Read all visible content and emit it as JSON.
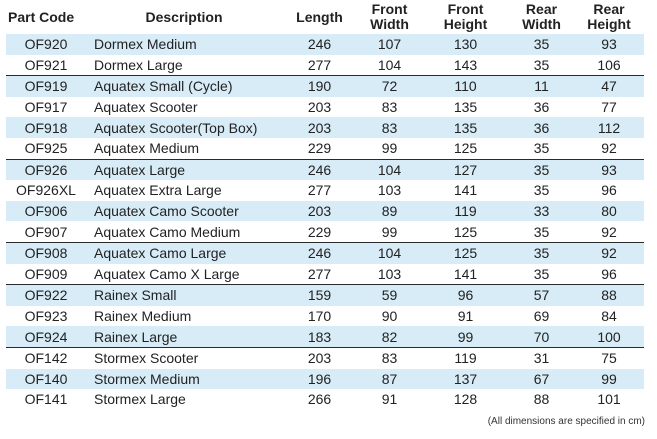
{
  "headers": {
    "part_code": "Part Code",
    "description": "Description",
    "length": "Length",
    "front_width_1": "Front",
    "front_width_2": "Width",
    "front_height_1": "Front",
    "front_height_2": "Height",
    "rear_width_1": "Rear",
    "rear_width_2": "Width",
    "rear_height_1": "Rear",
    "rear_height_2": "Height"
  },
  "colors": {
    "row_shade": "#d7ecf7",
    "group_divider": "#2a2a2a"
  },
  "rows": [
    {
      "code": "OF920",
      "desc": "Dormex Medium",
      "length": "246",
      "fw": "107",
      "fh": "130",
      "rw": "35",
      "rh": "93",
      "shaded": true,
      "group_start": false
    },
    {
      "code": "OF921",
      "desc": "Dormex Large",
      "length": "277",
      "fw": "104",
      "fh": "143",
      "rw": "35",
      "rh": "106",
      "shaded": false,
      "group_start": false
    },
    {
      "code": "OF919",
      "desc": "Aquatex Small (Cycle)",
      "length": "190",
      "fw": "72",
      "fh": "110",
      "rw": "11",
      "rh": "47",
      "shaded": true,
      "group_start": true
    },
    {
      "code": "OF917",
      "desc": "Aquatex Scooter",
      "length": "203",
      "fw": "83",
      "fh": "135",
      "rw": "36",
      "rh": "77",
      "shaded": false,
      "group_start": false
    },
    {
      "code": "OF918",
      "desc": "Aquatex Scooter(Top Box)",
      "length": "203",
      "fw": "83",
      "fh": "135",
      "rw": "36",
      "rh": "112",
      "shaded": true,
      "group_start": false
    },
    {
      "code": "OF925",
      "desc": "Aquatex Medium",
      "length": "229",
      "fw": "99",
      "fh": "125",
      "rw": "35",
      "rh": "92",
      "shaded": false,
      "group_start": false
    },
    {
      "code": "OF926",
      "desc": "Aquatex Large",
      "length": "246",
      "fw": "104",
      "fh": "127",
      "rw": "35",
      "rh": "93",
      "shaded": true,
      "group_start": true
    },
    {
      "code": "OF926XL",
      "desc": "Aquatex Extra Large",
      "length": "277",
      "fw": "103",
      "fh": "141",
      "rw": "35",
      "rh": "96",
      "shaded": false,
      "group_start": false
    },
    {
      "code": "OF906",
      "desc": "Aquatex Camo Scooter",
      "length": "203",
      "fw": "89",
      "fh": "119",
      "rw": "33",
      "rh": "80",
      "shaded": true,
      "group_start": false
    },
    {
      "code": "OF907",
      "desc": "Aquatex Camo Medium",
      "length": "229",
      "fw": "99",
      "fh": "125",
      "rw": "35",
      "rh": "92",
      "shaded": false,
      "group_start": false
    },
    {
      "code": "OF908",
      "desc": "Aquatex Camo Large",
      "length": "246",
      "fw": "104",
      "fh": "125",
      "rw": "35",
      "rh": "92",
      "shaded": true,
      "group_start": true
    },
    {
      "code": "OF909",
      "desc": "Aquatex Camo X Large",
      "length": "277",
      "fw": "103",
      "fh": "141",
      "rw": "35",
      "rh": "96",
      "shaded": false,
      "group_start": false
    },
    {
      "code": "OF922",
      "desc": "Rainex Small",
      "length": "159",
      "fw": "59",
      "fh": "96",
      "rw": "57",
      "rh": "88",
      "shaded": true,
      "group_start": true
    },
    {
      "code": "OF923",
      "desc": "Rainex Medium",
      "length": "170",
      "fw": "90",
      "fh": "91",
      "rw": "69",
      "rh": "84",
      "shaded": false,
      "group_start": false
    },
    {
      "code": "OF924",
      "desc": "Rainex Large",
      "length": "183",
      "fw": "82",
      "fh": "99",
      "rw": "70",
      "rh": "100",
      "shaded": true,
      "group_start": false
    },
    {
      "code": "OF142",
      "desc": "Stormex Scooter",
      "length": "203",
      "fw": "83",
      "fh": "119",
      "rw": "31",
      "rh": "75",
      "shaded": false,
      "group_start": true
    },
    {
      "code": "OF140",
      "desc": "Stormex Medium",
      "length": "196",
      "fw": "87",
      "fh": "137",
      "rw": "67",
      "rh": "99",
      "shaded": true,
      "group_start": false
    },
    {
      "code": "OF141",
      "desc": "Stormex Large",
      "length": "266",
      "fw": "91",
      "fh": "128",
      "rw": "88",
      "rh": "101",
      "shaded": false,
      "group_start": false
    }
  ],
  "footnote": "(All dimensions are specified in cm)"
}
